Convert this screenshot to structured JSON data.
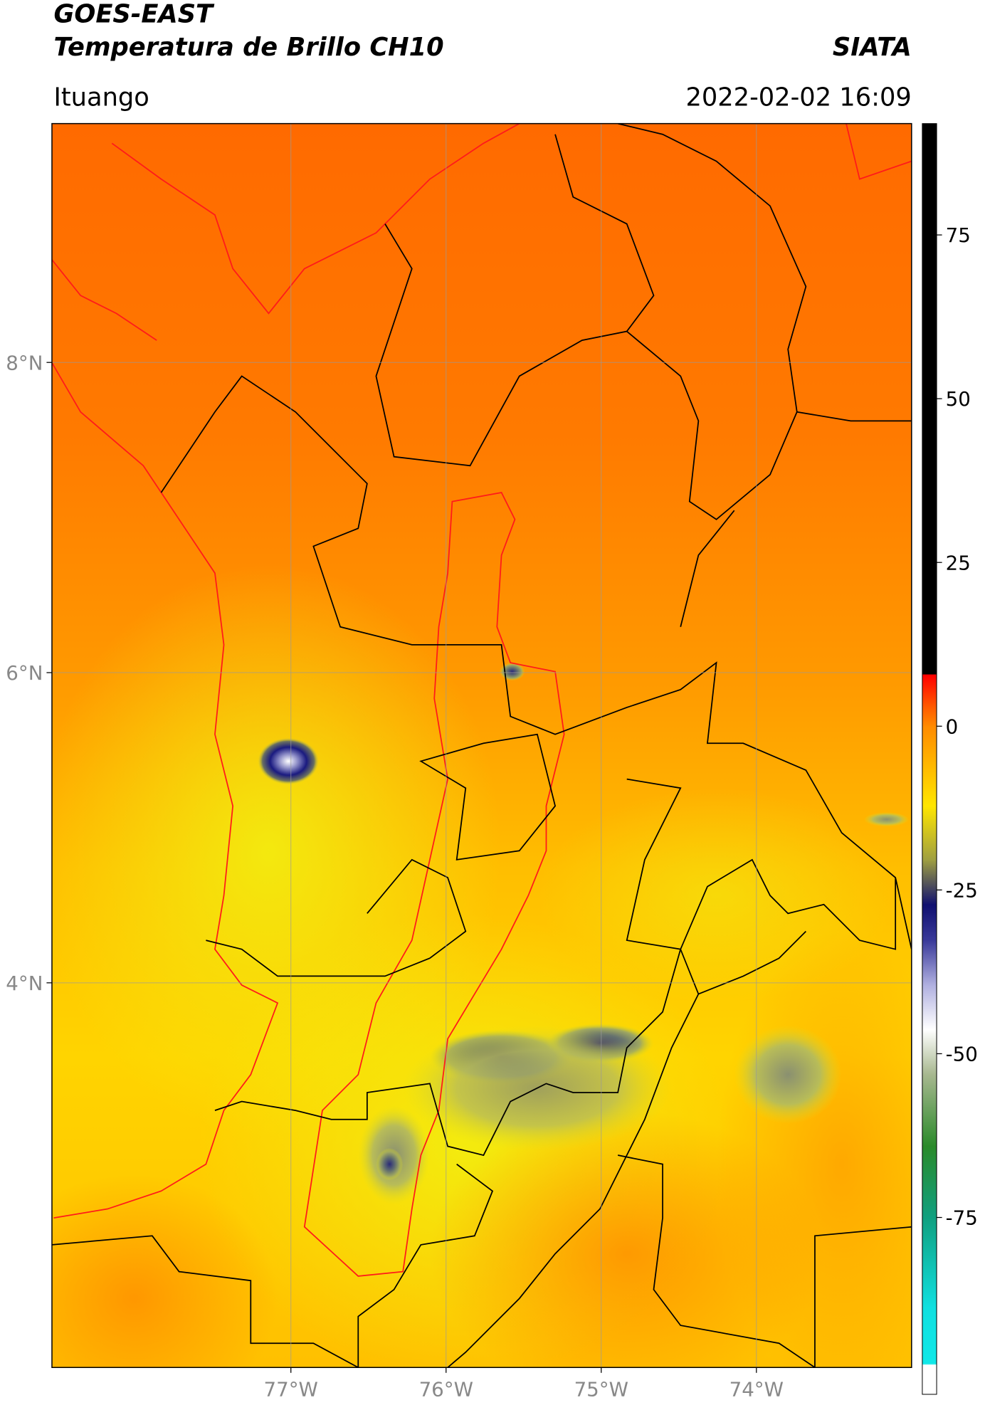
{
  "header": {
    "title": "GOES-EAST",
    "subtitle": "Temperatura de Brillo CH10",
    "source": "SIATA",
    "location": "Ituango",
    "datetime": "2022-02-02 16:09"
  },
  "map": {
    "xlim": [
      -78.54,
      -73.0
    ],
    "ylim": [
      1.52,
      9.54
    ],
    "xticks": [
      {
        "value": -77,
        "label": "77°W"
      },
      {
        "value": -76,
        "label": "76°W"
      },
      {
        "value": -75,
        "label": "75°W"
      },
      {
        "value": -74,
        "label": "74°W"
      }
    ],
    "yticks": [
      {
        "value": 4,
        "label": "4°N"
      },
      {
        "value": 6,
        "label": "6°N"
      },
      {
        "value": 8,
        "label": "8°N"
      }
    ]
  },
  "colorbar": {
    "lim": [
      -102,
      92
    ],
    "ticks": [
      -75,
      -50,
      -25,
      0,
      25,
      50,
      75
    ]
  }
}
